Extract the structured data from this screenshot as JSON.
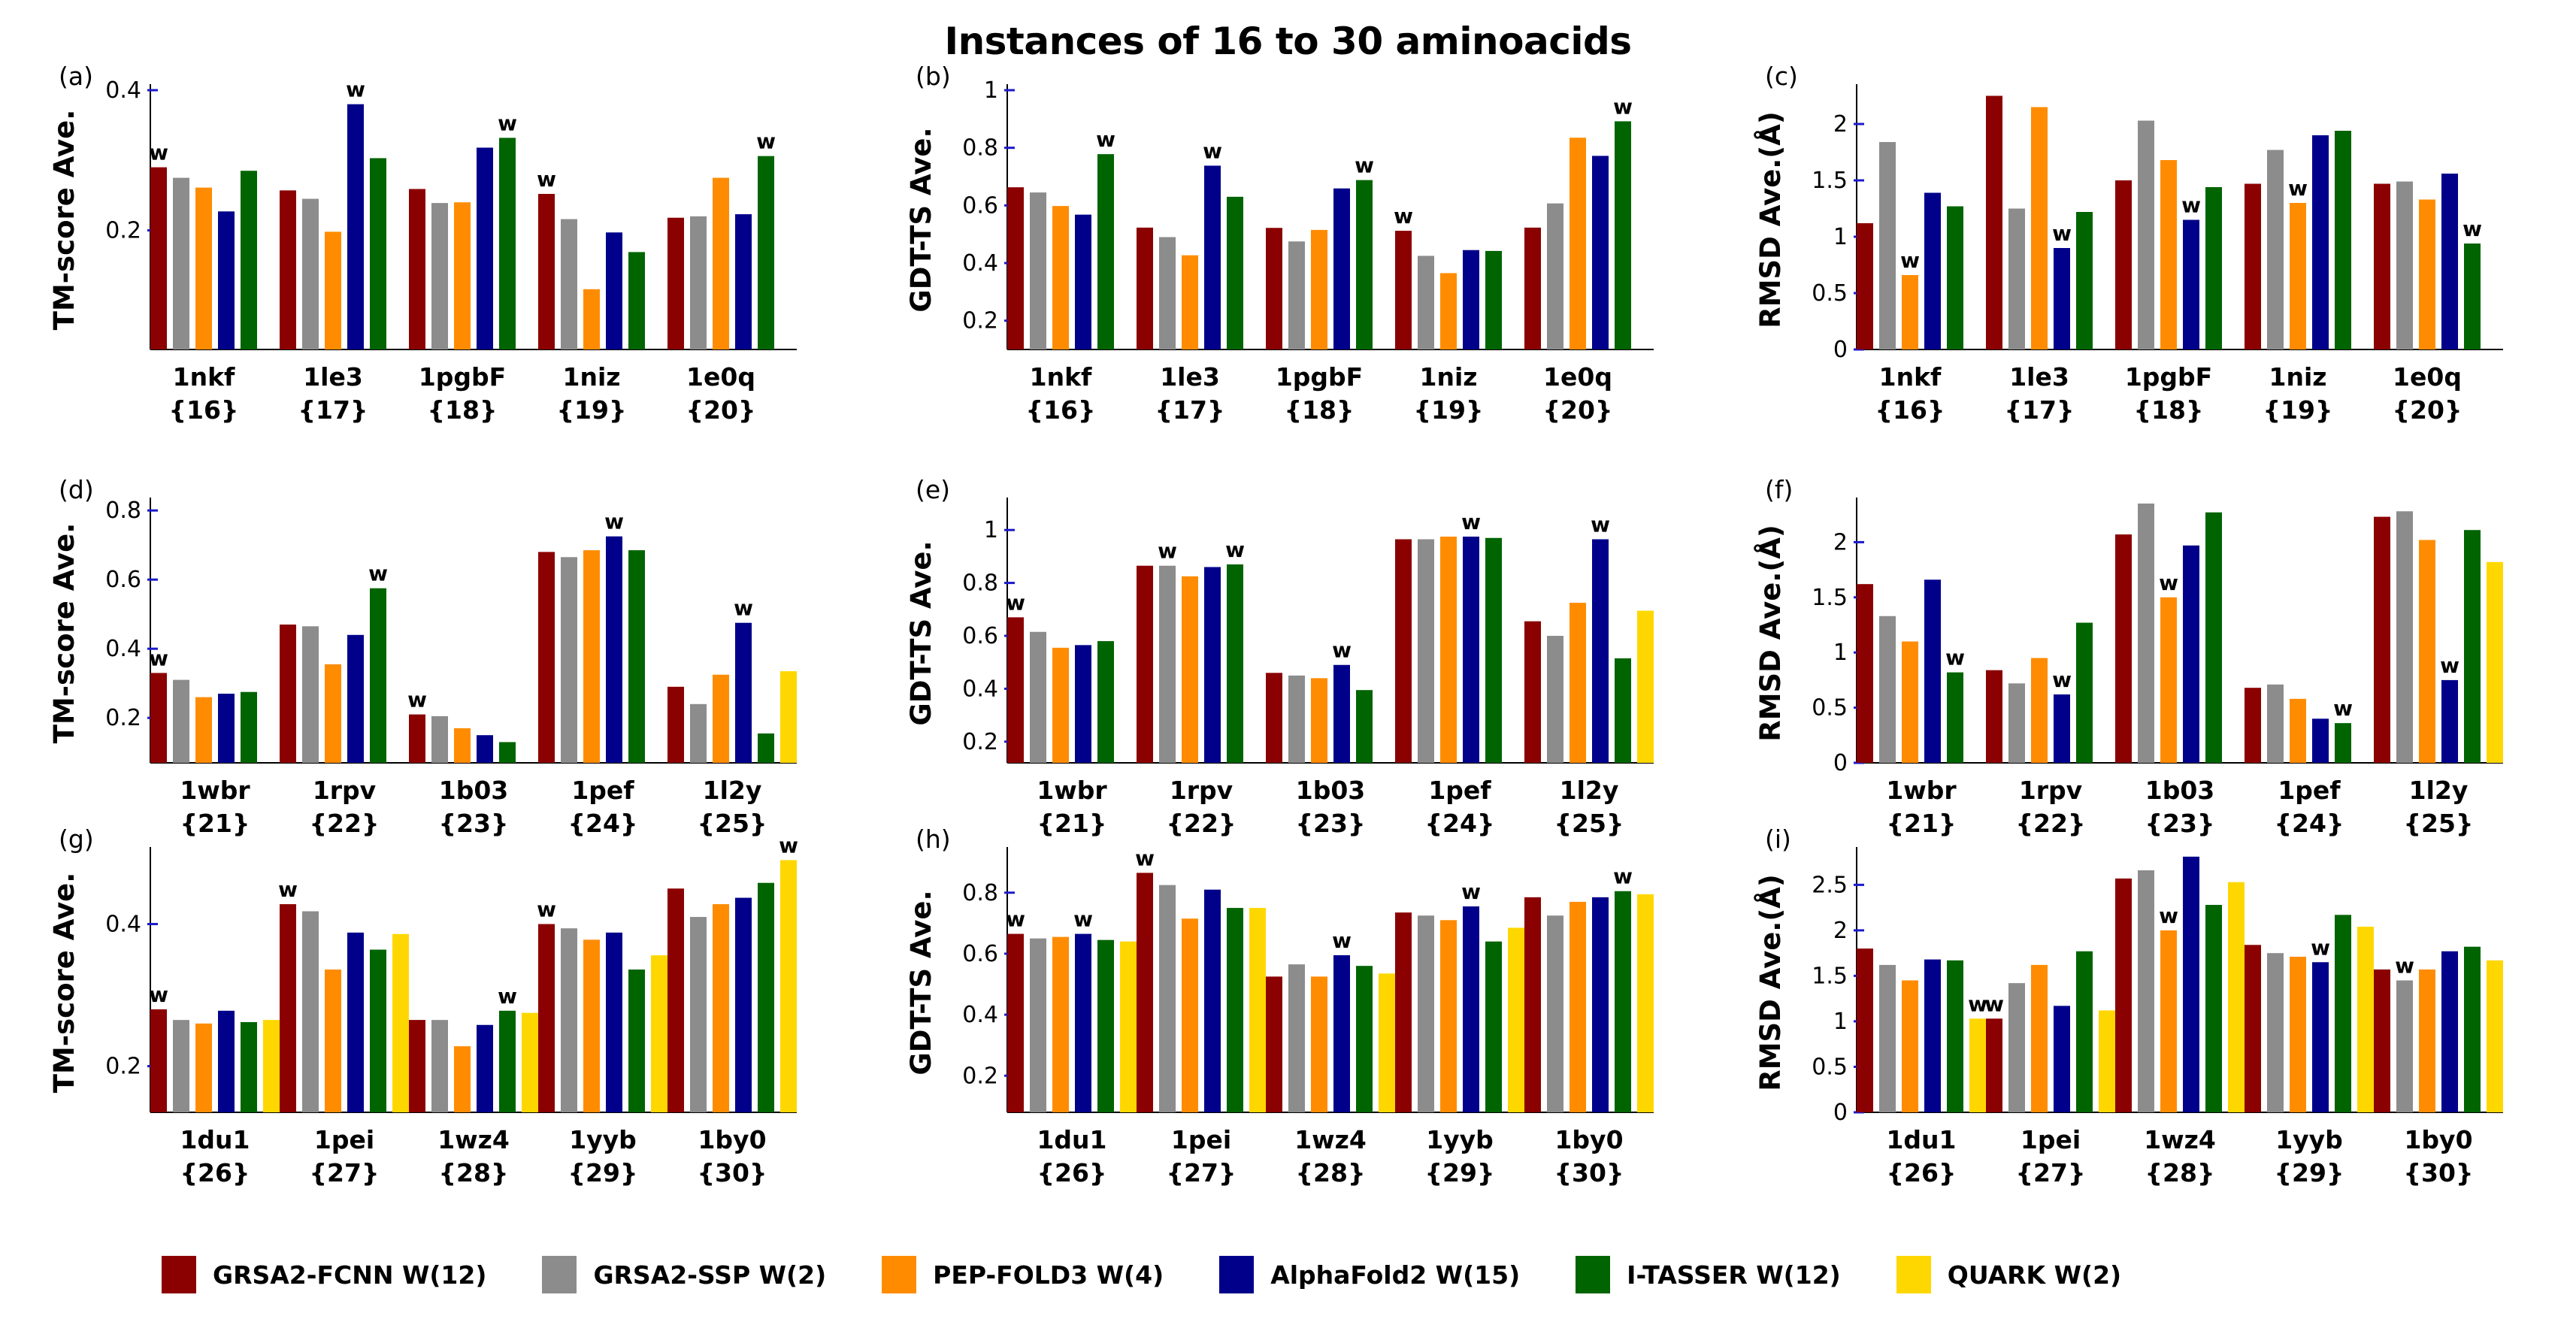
{
  "title": "Instances of 16 to 30 aminoacids",
  "colors": {
    "GRSA2-FCNN": "#8b0000",
    "GRSA2-SSP": "#8c8c8c",
    "PEP-FOLD3": "#ff8c00",
    "AlphaFold2": "#00008b",
    "I-TASSER": "#006400",
    "QUARK": "#ffd700"
  },
  "legend": [
    {
      "key": "GRSA2-FCNN",
      "label": "GRSA2-FCNN W(12)"
    },
    {
      "key": "GRSA2-SSP",
      "label": "GRSA2-SSP W(2)"
    },
    {
      "key": "PEP-FOLD3",
      "label": "PEP-FOLD3 W(4)"
    },
    {
      "key": "AlphaFold2",
      "label": "AlphaFold2 W(15)"
    },
    {
      "key": "I-TASSER",
      "label": "I-TASSER W(12)"
    },
    {
      "key": "QUARK",
      "label": "QUARK W(2)"
    }
  ],
  "chart_data": [
    {
      "panel": "(a)",
      "type": "bar",
      "ylabel": "TM-score Ave.",
      "ylim": [
        0.03,
        0.4
      ],
      "yticks": [
        "0.2",
        "0.4"
      ],
      "categories": [
        "1nkf",
        "1le3",
        "1pgbF",
        "1niz",
        "1e0q"
      ],
      "sizes": [
        "{16}",
        "{17}",
        "{18}",
        "{19}",
        "{20}"
      ],
      "series": [
        {
          "name": "GRSA2-FCNN",
          "values": [
            0.29,
            0.257,
            0.259,
            0.252,
            0.218
          ]
        },
        {
          "name": "GRSA2-SSP",
          "values": [
            0.275,
            0.245,
            0.239,
            0.216,
            0.22
          ]
        },
        {
          "name": "PEP-FOLD3",
          "values": [
            0.261,
            0.198,
            0.24,
            0.116,
            0.275
          ]
        },
        {
          "name": "AlphaFold2",
          "values": [
            0.227,
            0.38,
            0.318,
            0.197,
            0.223
          ]
        },
        {
          "name": "I-TASSER",
          "values": [
            0.285,
            0.303,
            0.332,
            0.169,
            0.306
          ]
        }
      ],
      "winners": [
        0,
        3,
        4,
        0,
        4
      ]
    },
    {
      "panel": "(b)",
      "type": "bar",
      "ylabel": "GDT-TS Ave.",
      "ylim": [
        0.1,
        1.0
      ],
      "yticks": [
        "0.2",
        "0.4",
        "0.6",
        "0.8",
        "1"
      ],
      "categories": [
        "1nkf",
        "1le3",
        "1pgbF",
        "1niz",
        "1e0q"
      ],
      "sizes": [
        "{16}",
        "{17}",
        "{18}",
        "{19}",
        "{20}"
      ],
      "series": [
        {
          "name": "GRSA2-FCNN",
          "values": [
            0.663,
            0.523,
            0.522,
            0.512,
            0.523
          ]
        },
        {
          "name": "GRSA2-SSP",
          "values": [
            0.645,
            0.49,
            0.475,
            0.425,
            0.607
          ]
        },
        {
          "name": "PEP-FOLD3",
          "values": [
            0.598,
            0.427,
            0.515,
            0.365,
            0.835
          ]
        },
        {
          "name": "AlphaFold2",
          "values": [
            0.568,
            0.738,
            0.659,
            0.445,
            0.772
          ]
        },
        {
          "name": "I-TASSER",
          "values": [
            0.778,
            0.63,
            0.688,
            0.442,
            0.892
          ]
        }
      ],
      "winners": [
        4,
        3,
        4,
        0,
        4
      ]
    },
    {
      "panel": "(c)",
      "type": "bar",
      "ylabel": "RMSD Ave.(Å)",
      "ylim": [
        0,
        2.3
      ],
      "yticks": [
        "0",
        "0.5",
        "1",
        "1.5",
        "2"
      ],
      "categories": [
        "1nkf",
        "1le3",
        "1pgbF",
        "1niz",
        "1e0q"
      ],
      "sizes": [
        "{16}",
        "{17}",
        "{18}",
        "{19}",
        "{20}"
      ],
      "series": [
        {
          "name": "GRSA2-FCNN",
          "values": [
            1.12,
            2.25,
            1.5,
            1.47,
            1.47
          ]
        },
        {
          "name": "GRSA2-SSP",
          "values": [
            1.84,
            1.25,
            2.03,
            1.77,
            1.49
          ]
        },
        {
          "name": "PEP-FOLD3",
          "values": [
            0.66,
            2.15,
            1.68,
            1.3,
            1.33
          ]
        },
        {
          "name": "AlphaFold2",
          "values": [
            1.39,
            0.9,
            1.15,
            1.9,
            1.56
          ]
        },
        {
          "name": "I-TASSER",
          "values": [
            1.27,
            1.22,
            1.44,
            1.94,
            0.94
          ]
        }
      ],
      "winners": [
        2,
        3,
        3,
        2,
        4
      ]
    },
    {
      "panel": "(d)",
      "type": "bar",
      "ylabel": "TM-score Ave.",
      "ylim": [
        0.07,
        0.82
      ],
      "yticks": [
        "0.2",
        "0.4",
        "0.6",
        "0.8"
      ],
      "categories": [
        "1wbr",
        "1rpv",
        "1b03",
        "1pef",
        "1l2y"
      ],
      "sizes": [
        "{21}",
        "{22}",
        "{23}",
        "{24}",
        "{25}"
      ],
      "series": [
        {
          "name": "GRSA2-FCNN",
          "values": [
            0.33,
            0.47,
            0.21,
            0.68,
            0.29
          ]
        },
        {
          "name": "GRSA2-SSP",
          "values": [
            0.31,
            0.465,
            0.205,
            0.665,
            0.24
          ]
        },
        {
          "name": "PEP-FOLD3",
          "values": [
            0.26,
            0.355,
            0.17,
            0.685,
            0.325
          ]
        },
        {
          "name": "AlphaFold2",
          "values": [
            0.27,
            0.44,
            0.15,
            0.725,
            0.475
          ]
        },
        {
          "name": "I-TASSER",
          "values": [
            0.275,
            0.575,
            0.13,
            0.685,
            0.155
          ]
        },
        {
          "name": "QUARK",
          "values": [
            null,
            null,
            null,
            null,
            0.335
          ]
        }
      ],
      "winners": [
        0,
        4,
        0,
        3,
        3
      ]
    },
    {
      "panel": "(e)",
      "type": "bar",
      "ylabel": "GDT-TS Ave.",
      "ylim": [
        0.12,
        1.1
      ],
      "yticks": [
        "0.2",
        "0.4",
        "0.6",
        "0.8",
        "1"
      ],
      "categories": [
        "1wbr",
        "1rpv",
        "1b03",
        "1pef",
        "1l2y"
      ],
      "sizes": [
        "{21}",
        "{22}",
        "{23}",
        "{24}",
        "{25}"
      ],
      "series": [
        {
          "name": "GRSA2-FCNN",
          "values": [
            0.67,
            0.865,
            0.46,
            0.965,
            0.655
          ]
        },
        {
          "name": "GRSA2-SSP",
          "values": [
            0.615,
            0.865,
            0.45,
            0.965,
            0.6
          ]
        },
        {
          "name": "PEP-FOLD3",
          "values": [
            0.555,
            0.825,
            0.44,
            0.975,
            0.725
          ]
        },
        {
          "name": "AlphaFold2",
          "values": [
            0.565,
            0.86,
            0.49,
            0.975,
            0.965
          ]
        },
        {
          "name": "I-TASSER",
          "values": [
            0.58,
            0.87,
            0.395,
            0.97,
            0.515
          ]
        },
        {
          "name": "QUARK",
          "values": [
            null,
            null,
            null,
            null,
            0.695
          ]
        }
      ],
      "winners": [
        0,
        1,
        3,
        3,
        3
      ],
      "extra_winners": [
        {
          "category": 1,
          "series": 4
        }
      ]
    },
    {
      "panel": "(f)",
      "type": "bar",
      "ylabel": "RMSD Ave.(Å)",
      "ylim": [
        0,
        2.35
      ],
      "yticks": [
        "0",
        "0.5",
        "1",
        "1.5",
        "2"
      ],
      "categories": [
        "1wbr",
        "1rpv",
        "1b03",
        "1pef",
        "1l2y"
      ],
      "sizes": [
        "{21}",
        "{22}",
        "{23}",
        "{24}",
        "{25}"
      ],
      "series": [
        {
          "name": "GRSA2-FCNN",
          "values": [
            1.62,
            0.84,
            2.07,
            0.68,
            2.23
          ]
        },
        {
          "name": "GRSA2-SSP",
          "values": [
            1.33,
            0.72,
            2.35,
            0.71,
            2.28
          ]
        },
        {
          "name": "PEP-FOLD3",
          "values": [
            1.1,
            0.95,
            1.5,
            0.58,
            2.02
          ]
        },
        {
          "name": "AlphaFold2",
          "values": [
            1.66,
            0.62,
            1.97,
            0.4,
            0.75
          ]
        },
        {
          "name": "I-TASSER",
          "values": [
            0.82,
            1.27,
            2.27,
            0.36,
            2.11
          ]
        },
        {
          "name": "QUARK",
          "values": [
            null,
            null,
            null,
            null,
            1.82
          ]
        }
      ],
      "winners": [
        4,
        3,
        2,
        4,
        3
      ]
    },
    {
      "panel": "(g)",
      "type": "bar",
      "ylabel": "TM-score Ave.",
      "ylim": [
        0.135,
        0.5
      ],
      "yticks": [
        "0.2",
        "0.4"
      ],
      "categories": [
        "1du1",
        "1pei",
        "1wz4",
        "1yyb",
        "1by0"
      ],
      "sizes": [
        "{26}",
        "{27}",
        "{28}",
        "{29}",
        "{30}"
      ],
      "series": [
        {
          "name": "GRSA2-FCNN",
          "values": [
            0.28,
            0.428,
            0.265,
            0.4,
            0.45
          ]
        },
        {
          "name": "GRSA2-SSP",
          "values": [
            0.265,
            0.418,
            0.265,
            0.394,
            0.41
          ]
        },
        {
          "name": "PEP-FOLD3",
          "values": [
            0.26,
            0.336,
            0.228,
            0.378,
            0.428
          ]
        },
        {
          "name": "AlphaFold2",
          "values": [
            0.278,
            0.388,
            0.258,
            0.388,
            0.437
          ]
        },
        {
          "name": "I-TASSER",
          "values": [
            0.262,
            0.364,
            0.278,
            0.336,
            0.458
          ]
        },
        {
          "name": "QUARK",
          "values": [
            0.265,
            0.386,
            0.275,
            0.356,
            0.49
          ]
        }
      ],
      "winners": [
        0,
        0,
        4,
        0,
        5
      ]
    },
    {
      "panel": "(h)",
      "type": "bar",
      "ylabel": "GDT-TS Ave.",
      "ylim": [
        0.08,
        0.93
      ],
      "yticks": [
        "0.2",
        "0.4",
        "0.6",
        "0.8"
      ],
      "categories": [
        "1du1",
        "1pei",
        "1wz4",
        "1yyb",
        "1by0"
      ],
      "sizes": [
        "{26}",
        "{27}",
        "{28}",
        "{29}",
        "{30}"
      ],
      "series": [
        {
          "name": "GRSA2-FCNN",
          "values": [
            0.665,
            0.865,
            0.525,
            0.735,
            0.785
          ]
        },
        {
          "name": "GRSA2-SSP",
          "values": [
            0.65,
            0.825,
            0.565,
            0.725,
            0.725
          ]
        },
        {
          "name": "PEP-FOLD3",
          "values": [
            0.655,
            0.715,
            0.525,
            0.71,
            0.77
          ]
        },
        {
          "name": "AlphaFold2",
          "values": [
            0.665,
            0.81,
            0.595,
            0.755,
            0.785
          ]
        },
        {
          "name": "I-TASSER",
          "values": [
            0.645,
            0.75,
            0.56,
            0.64,
            0.805
          ]
        },
        {
          "name": "QUARK",
          "values": [
            0.64,
            0.75,
            0.535,
            0.685,
            0.795
          ]
        }
      ],
      "winners": [
        0,
        0,
        3,
        3,
        4
      ],
      "extra_winners": [
        {
          "category": 0,
          "series": 3
        }
      ]
    },
    {
      "panel": "(i)",
      "type": "bar",
      "ylabel": "RMSD Ave.(Å)",
      "ylim": [
        0,
        2.85
      ],
      "yticks": [
        "0",
        "0.5",
        "1",
        "1.5",
        "2",
        "2.5"
      ],
      "categories": [
        "1du1",
        "1pei",
        "1wz4",
        "1yyb",
        "1by0"
      ],
      "sizes": [
        "{26}",
        "{27}",
        "{28}",
        "{29}",
        "{30}"
      ],
      "series": [
        {
          "name": "GRSA2-FCNN",
          "values": [
            1.8,
            1.03,
            2.57,
            1.84,
            1.57
          ]
        },
        {
          "name": "GRSA2-SSP",
          "values": [
            1.62,
            1.42,
            2.66,
            1.75,
            1.45
          ]
        },
        {
          "name": "PEP-FOLD3",
          "values": [
            1.45,
            1.62,
            2.0,
            1.71,
            1.57
          ]
        },
        {
          "name": "AlphaFold2",
          "values": [
            1.68,
            1.17,
            2.81,
            1.65,
            1.77
          ]
        },
        {
          "name": "I-TASSER",
          "values": [
            1.67,
            1.77,
            2.28,
            2.17,
            1.82
          ]
        },
        {
          "name": "QUARK",
          "values": [
            1.03,
            1.12,
            2.53,
            2.04,
            1.67
          ]
        }
      ],
      "winners": [
        5,
        0,
        2,
        3,
        1
      ]
    }
  ],
  "winner_mark": "w"
}
